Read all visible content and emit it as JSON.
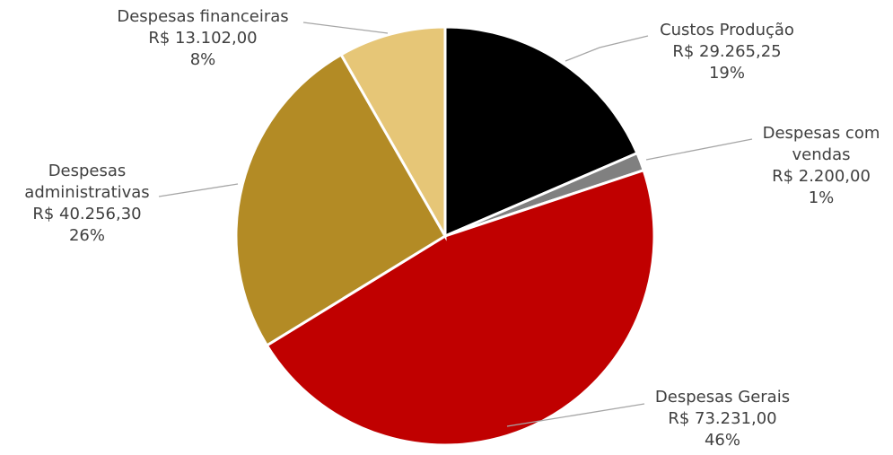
{
  "chart_data": {
    "type": "pie",
    "title": "",
    "slices": [
      {
        "name": [
          "Custos Produção"
        ],
        "value": 29265.25,
        "value_label": "R$ 29.265,25",
        "percent_label": "19%",
        "color": "#000000"
      },
      {
        "name": [
          "Despesas com",
          "vendas"
        ],
        "value": 2200.0,
        "value_label": "R$ 2.200,00",
        "percent_label": "1%",
        "color": "#808080"
      },
      {
        "name": [
          "Despesas Gerais"
        ],
        "value": 73231.0,
        "value_label": "R$ 73.231,00",
        "percent_label": "46%",
        "color": "#c00000"
      },
      {
        "name": [
          "Despesas",
          "administrativas"
        ],
        "value": 40256.3,
        "value_label": "R$ 40.256,30",
        "percent_label": "26%",
        "color": "#b38b25"
      },
      {
        "name": [
          "Despesas financeiras"
        ],
        "value": 13102.0,
        "value_label": "R$ 13.102,00",
        "percent_label": "8%",
        "color": "#e6c677"
      }
    ]
  }
}
